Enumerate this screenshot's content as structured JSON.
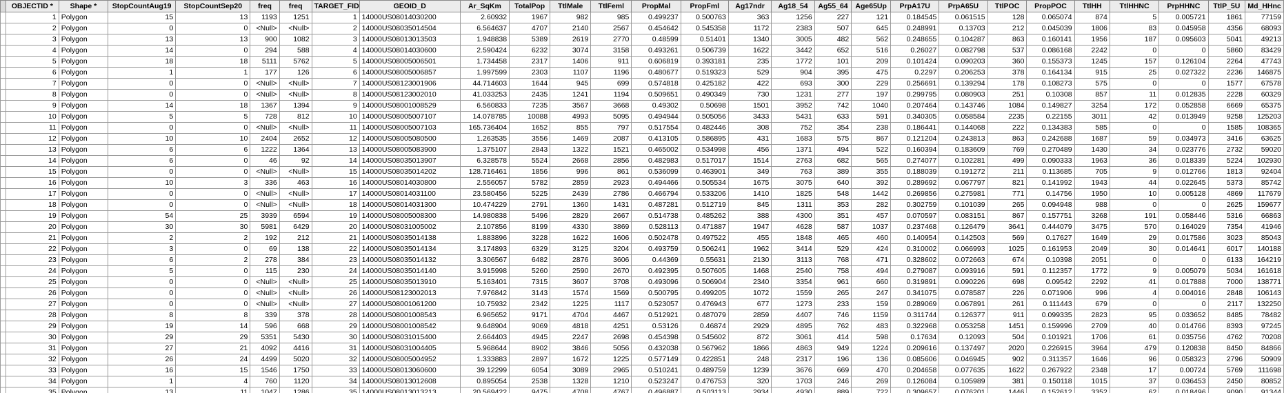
{
  "columns": [
    "OBJECTID *",
    "Shape *",
    "StopCountAug19",
    "StopCountSep20",
    "freq",
    "freq",
    "TARGET_FID",
    "GEOID_D",
    "Ar_SqKm",
    "TotalPop",
    "TtlMale",
    "TtlFeml",
    "PropMal",
    "PropFml",
    "Ag17ndr",
    "Ag18_54",
    "Ag55_64",
    "Age65Up",
    "PrpA17U",
    "PrpA65U",
    "TtlPOC",
    "PropPOC",
    "TtlHH",
    "TtlHHNC",
    "PrpHHNC",
    "TtlP_5U",
    "Md_HHnc"
  ],
  "rows": [
    [
      "1",
      "Polygon",
      "15",
      "13",
      "1193",
      "1251",
      "1",
      "14000US08014030200",
      "2.60932",
      "1967",
      "982",
      "985",
      "0.499237",
      "0.500763",
      "363",
      "1256",
      "227",
      "121",
      "0.184545",
      "0.061515",
      "128",
      "0.065074",
      "874",
      "5",
      "0.005721",
      "1861",
      "77159"
    ],
    [
      "2",
      "Polygon",
      "0",
      "0",
      "<Null>",
      "<Null>",
      "2",
      "14000US08035014504",
      "6.564637",
      "4707",
      "2140",
      "2567",
      "0.454642",
      "0.545358",
      "1172",
      "2383",
      "507",
      "645",
      "0.248991",
      "0.13703",
      "212",
      "0.045039",
      "1806",
      "83",
      "0.045958",
      "4356",
      "68093"
    ],
    [
      "3",
      "Polygon",
      "13",
      "13",
      "900",
      "1082",
      "3",
      "14000US08013013503",
      "1.948838",
      "5389",
      "2619",
      "2770",
      "0.48599",
      "0.51401",
      "1340",
      "3005",
      "482",
      "562",
      "0.248655",
      "0.104287",
      "863",
      "0.160141",
      "1956",
      "187",
      "0.095603",
      "5041",
      "49213"
    ],
    [
      "4",
      "Polygon",
      "14",
      "0",
      "294",
      "588",
      "4",
      "14000US08014030600",
      "2.590424",
      "6232",
      "3074",
      "3158",
      "0.493261",
      "0.506739",
      "1622",
      "3442",
      "652",
      "516",
      "0.26027",
      "0.082798",
      "537",
      "0.086168",
      "2242",
      "0",
      "0",
      "5860",
      "83429"
    ],
    [
      "5",
      "Polygon",
      "18",
      "18",
      "5111",
      "5762",
      "5",
      "14000US08005006501",
      "1.734458",
      "2317",
      "1406",
      "911",
      "0.606819",
      "0.393181",
      "235",
      "1772",
      "101",
      "209",
      "0.101424",
      "0.090203",
      "360",
      "0.155373",
      "1245",
      "157",
      "0.126104",
      "2264",
      "47743"
    ],
    [
      "6",
      "Polygon",
      "1",
      "1",
      "177",
      "126",
      "6",
      "14000US08005006857",
      "1.997599",
      "2303",
      "1107",
      "1196",
      "0.480677",
      "0.519323",
      "529",
      "904",
      "395",
      "475",
      "0.2297",
      "0.206253",
      "378",
      "0.164134",
      "915",
      "25",
      "0.027322",
      "2236",
      "146875"
    ],
    [
      "7",
      "Polygon",
      "0",
      "0",
      "<Null>",
      "<Null>",
      "7",
      "14000US08123001906",
      "44.714603",
      "1644",
      "945",
      "699",
      "0.574818",
      "0.425182",
      "422",
      "693",
      "300",
      "229",
      "0.256691",
      "0.139294",
      "178",
      "0.108273",
      "575",
      "0",
      "0",
      "1577",
      "67578"
    ],
    [
      "8",
      "Polygon",
      "0",
      "0",
      "<Null>",
      "<Null>",
      "8",
      "14000US08123002010",
      "41.033253",
      "2435",
      "1241",
      "1194",
      "0.509651",
      "0.490349",
      "730",
      "1231",
      "277",
      "197",
      "0.299795",
      "0.080903",
      "251",
      "0.10308",
      "857",
      "11",
      "0.012835",
      "2228",
      "60329"
    ],
    [
      "9",
      "Polygon",
      "14",
      "18",
      "1367",
      "1394",
      "9",
      "14000US08001008529",
      "6.560833",
      "7235",
      "3567",
      "3668",
      "0.49302",
      "0.50698",
      "1501",
      "3952",
      "742",
      "1040",
      "0.207464",
      "0.143746",
      "1084",
      "0.149827",
      "3254",
      "172",
      "0.052858",
      "6669",
      "65375"
    ],
    [
      "10",
      "Polygon",
      "5",
      "5",
      "728",
      "812",
      "10",
      "14000US08005007107",
      "14.078785",
      "10088",
      "4993",
      "5095",
      "0.494944",
      "0.505056",
      "3433",
      "5431",
      "633",
      "591",
      "0.340305",
      "0.058584",
      "2235",
      "0.22155",
      "3011",
      "42",
      "0.013949",
      "9258",
      "125203"
    ],
    [
      "11",
      "Polygon",
      "0",
      "0",
      "<Null>",
      "<Null>",
      "11",
      "14000US08005007103",
      "165.736404",
      "1652",
      "855",
      "797",
      "0.517554",
      "0.482446",
      "308",
      "752",
      "354",
      "238",
      "0.186441",
      "0.144068",
      "222",
      "0.134383",
      "585",
      "0",
      "0",
      "1585",
      "108365"
    ],
    [
      "12",
      "Polygon",
      "10",
      "10",
      "2404",
      "2652",
      "12",
      "14000US08005080500",
      "1.263535",
      "3556",
      "1469",
      "2087",
      "0.413105",
      "0.586895",
      "431",
      "1683",
      "575",
      "867",
      "0.121204",
      "0.243813",
      "863",
      "0.242688",
      "1687",
      "59",
      "0.034973",
      "3416",
      "63625"
    ],
    [
      "13",
      "Polygon",
      "6",
      "6",
      "1222",
      "1364",
      "13",
      "14000US08005083900",
      "1.375107",
      "2843",
      "1322",
      "1521",
      "0.465002",
      "0.534998",
      "456",
      "1371",
      "494",
      "522",
      "0.160394",
      "0.183609",
      "769",
      "0.270489",
      "1430",
      "34",
      "0.023776",
      "2732",
      "59020"
    ],
    [
      "14",
      "Polygon",
      "6",
      "0",
      "46",
      "92",
      "14",
      "14000US08035013907",
      "6.328578",
      "5524",
      "2668",
      "2856",
      "0.482983",
      "0.517017",
      "1514",
      "2763",
      "682",
      "565",
      "0.274077",
      "0.102281",
      "499",
      "0.090333",
      "1963",
      "36",
      "0.018339",
      "5224",
      "102930"
    ],
    [
      "15",
      "Polygon",
      "0",
      "0",
      "<Null>",
      "<Null>",
      "15",
      "14000US08035014202",
      "128.716461",
      "1856",
      "996",
      "861",
      "0.536099",
      "0.463901",
      "349",
      "763",
      "389",
      "355",
      "0.188039",
      "0.191272",
      "211",
      "0.113685",
      "705",
      "9",
      "0.012766",
      "1813",
      "92404"
    ],
    [
      "16",
      "Polygon",
      "10",
      "3",
      "336",
      "463",
      "16",
      "14000US08014030800",
      "2.556057",
      "5782",
      "2859",
      "2923",
      "0.494466",
      "0.505534",
      "1675",
      "3075",
      "640",
      "392",
      "0.289692",
      "0.067797",
      "821",
      "0.141992",
      "1943",
      "44",
      "0.022645",
      "5373",
      "85742"
    ],
    [
      "17",
      "Polygon",
      "0",
      "0",
      "<Null>",
      "<Null>",
      "17",
      "14000US08014031100",
      "23.580456",
      "5225",
      "2439",
      "2786",
      "0.466794",
      "0.533206",
      "1410",
      "1825",
      "548",
      "1442",
      "0.269856",
      "0.275981",
      "771",
      "0.14756",
      "1950",
      "10",
      "0.005128",
      "4869",
      "117679"
    ],
    [
      "18",
      "Polygon",
      "0",
      "0",
      "<Null>",
      "<Null>",
      "18",
      "14000US08014031300",
      "10.474229",
      "2791",
      "1360",
      "1431",
      "0.487281",
      "0.512719",
      "845",
      "1311",
      "353",
      "282",
      "0.302759",
      "0.101039",
      "265",
      "0.094948",
      "988",
      "0",
      "0",
      "2625",
      "159677"
    ],
    [
      "19",
      "Polygon",
      "54",
      "25",
      "3939",
      "6594",
      "19",
      "14000US08005008300",
      "14.980838",
      "5496",
      "2829",
      "2667",
      "0.514738",
      "0.485262",
      "388",
      "4300",
      "351",
      "457",
      "0.070597",
      "0.083151",
      "867",
      "0.157751",
      "3268",
      "191",
      "0.058446",
      "5316",
      "66863"
    ],
    [
      "20",
      "Polygon",
      "30",
      "30",
      "5981",
      "6429",
      "20",
      "14000US08031005002",
      "2.107856",
      "8199",
      "4330",
      "3869",
      "0.528113",
      "0.471887",
      "1947",
      "4628",
      "587",
      "1037",
      "0.237468",
      "0.126479",
      "3641",
      "0.444079",
      "3475",
      "570",
      "0.164029",
      "7354",
      "41946"
    ],
    [
      "21",
      "Polygon",
      "2",
      "2",
      "192",
      "212",
      "21",
      "14000US08035014138",
      "1.883896",
      "3228",
      "1622",
      "1606",
      "0.502478",
      "0.497522",
      "455",
      "1848",
      "465",
      "460",
      "0.140954",
      "0.142503",
      "569",
      "0.17627",
      "1649",
      "29",
      "0.017586",
      "3023",
      "85043"
    ],
    [
      "22",
      "Polygon",
      "3",
      "0",
      "69",
      "138",
      "22",
      "14000US08035014134",
      "3.174893",
      "6329",
      "3125",
      "3204",
      "0.493759",
      "0.506241",
      "1962",
      "3414",
      "529",
      "424",
      "0.310002",
      "0.066993",
      "1025",
      "0.161953",
      "2049",
      "30",
      "0.014641",
      "6017",
      "140188"
    ],
    [
      "23",
      "Polygon",
      "6",
      "2",
      "278",
      "384",
      "23",
      "14000US08035014132",
      "3.306567",
      "6482",
      "2876",
      "3606",
      "0.44369",
      "0.55631",
      "2130",
      "3113",
      "768",
      "471",
      "0.328602",
      "0.072663",
      "674",
      "0.10398",
      "2051",
      "0",
      "0",
      "6133",
      "164219"
    ],
    [
      "24",
      "Polygon",
      "5",
      "0",
      "115",
      "230",
      "24",
      "14000US08035014140",
      "3.915998",
      "5260",
      "2590",
      "2670",
      "0.492395",
      "0.507605",
      "1468",
      "2540",
      "758",
      "494",
      "0.279087",
      "0.093916",
      "591",
      "0.112357",
      "1772",
      "9",
      "0.005079",
      "5034",
      "161618"
    ],
    [
      "25",
      "Polygon",
      "0",
      "0",
      "<Null>",
      "<Null>",
      "25",
      "14000US08035013910",
      "5.163401",
      "7315",
      "3607",
      "3708",
      "0.493096",
      "0.506904",
      "2340",
      "3354",
      "961",
      "660",
      "0.319891",
      "0.090226",
      "698",
      "0.09542",
      "2292",
      "41",
      "0.017888",
      "7000",
      "138771"
    ],
    [
      "26",
      "Polygon",
      "0",
      "0",
      "<Null>",
      "<Null>",
      "26",
      "14000US08123002013",
      "7.976842",
      "3143",
      "1574",
      "1569",
      "0.500795",
      "0.499205",
      "1072",
      "1559",
      "265",
      "247",
      "0.341075",
      "0.078587",
      "226",
      "0.071906",
      "996",
      "4",
      "0.004016",
      "2848",
      "106143"
    ],
    [
      "27",
      "Polygon",
      "0",
      "0",
      "<Null>",
      "<Null>",
      "27",
      "14000US08001061200",
      "10.75932",
      "2342",
      "1225",
      "1117",
      "0.523057",
      "0.476943",
      "677",
      "1273",
      "233",
      "159",
      "0.289069",
      "0.067891",
      "261",
      "0.111443",
      "679",
      "0",
      "0",
      "2117",
      "132250"
    ],
    [
      "28",
      "Polygon",
      "8",
      "8",
      "339",
      "378",
      "28",
      "14000US08001008543",
      "6.965652",
      "9171",
      "4704",
      "4467",
      "0.512921",
      "0.487079",
      "2859",
      "4407",
      "746",
      "1159",
      "0.311744",
      "0.126377",
      "911",
      "0.099335",
      "2823",
      "95",
      "0.033652",
      "8485",
      "78482"
    ],
    [
      "29",
      "Polygon",
      "19",
      "14",
      "596",
      "668",
      "29",
      "14000US08001008542",
      "9.648904",
      "9069",
      "4818",
      "4251",
      "0.53126",
      "0.46874",
      "2929",
      "4895",
      "762",
      "483",
      "0.322968",
      "0.053258",
      "1451",
      "0.159996",
      "2709",
      "40",
      "0.014766",
      "8393",
      "97245"
    ],
    [
      "30",
      "Polygon",
      "29",
      "29",
      "5351",
      "5430",
      "30",
      "14000US08031015400",
      "2.664403",
      "4945",
      "2247",
      "2698",
      "0.454398",
      "0.545602",
      "872",
      "3061",
      "414",
      "598",
      "0.17634",
      "0.12093",
      "504",
      "0.101921",
      "1706",
      "61",
      "0.035756",
      "4762",
      "70208"
    ],
    [
      "31",
      "Polygon",
      "27",
      "21",
      "4092",
      "4416",
      "31",
      "14000US08031004405",
      "5.968644",
      "8902",
      "3846",
      "5056",
      "0.432038",
      "0.567962",
      "1866",
      "4863",
      "949",
      "1224",
      "0.209616",
      "0.137497",
      "2020",
      "0.226915",
      "3964",
      "479",
      "0.120838",
      "8450",
      "84866"
    ],
    [
      "32",
      "Polygon",
      "26",
      "24",
      "4499",
      "5020",
      "32",
      "14000US08005004952",
      "1.333883",
      "2897",
      "1672",
      "1225",
      "0.577149",
      "0.422851",
      "248",
      "2317",
      "196",
      "136",
      "0.085606",
      "0.046945",
      "902",
      "0.311357",
      "1646",
      "96",
      "0.058323",
      "2796",
      "50909"
    ],
    [
      "33",
      "Polygon",
      "16",
      "15",
      "1546",
      "1750",
      "33",
      "14000US08013060600",
      "39.12299",
      "6054",
      "3089",
      "2965",
      "0.510241",
      "0.489759",
      "1239",
      "3676",
      "669",
      "470",
      "0.204658",
      "0.077635",
      "1622",
      "0.267922",
      "2348",
      "17",
      "0.00724",
      "5769",
      "111698"
    ],
    [
      "34",
      "Polygon",
      "1",
      "4",
      "760",
      "1120",
      "34",
      "14000US08013012608",
      "0.895054",
      "2538",
      "1328",
      "1210",
      "0.523247",
      "0.476753",
      "320",
      "1703",
      "246",
      "269",
      "0.126084",
      "0.105989",
      "381",
      "0.150118",
      "1015",
      "37",
      "0.036453",
      "2450",
      "80852"
    ],
    [
      "35",
      "Polygon",
      "13",
      "11",
      "1047",
      "1286",
      "35",
      "14000US08013013213",
      "20.569422",
      "9475",
      "4708",
      "4767",
      "0.496887",
      "0.503113",
      "2934",
      "4930",
      "889",
      "722",
      "0.309657",
      "0.076201",
      "1446",
      "0.152612",
      "3352",
      "62",
      "0.018496",
      "9090",
      "91344"
    ]
  ]
}
